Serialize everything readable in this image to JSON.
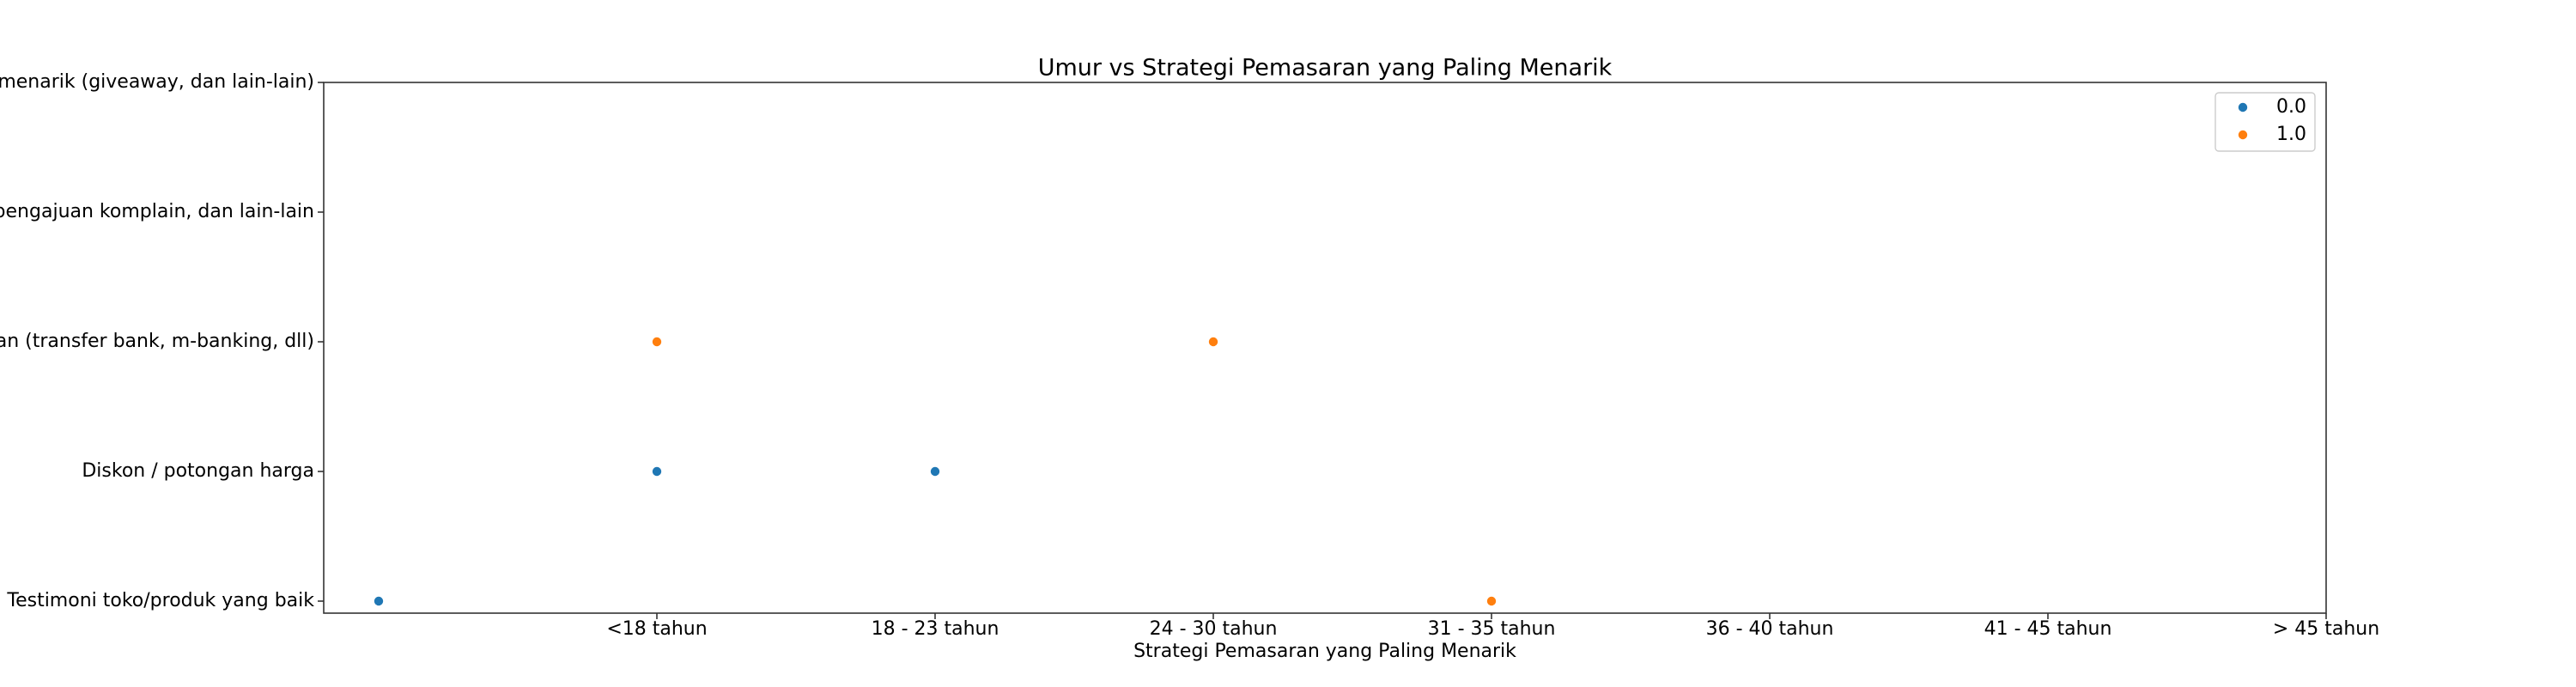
{
  "chart_data": {
    "type": "scatter",
    "title": "Umur vs Strategi Pemasaran yang Paling Menarik",
    "xlabel": "Strategi Pemasaran yang Paling Menarik",
    "ylabel": "",
    "x_categories": [
      "",
      "<18 tahun",
      "18 - 23 tahun",
      "24 - 30 tahun",
      "31 - 35 tahun",
      "36 - 40 tahun",
      "41 - 45 tahun",
      "> 45 tahun"
    ],
    "x_tick_labels": [
      "<18 tahun",
      "18 - 23 tahun",
      "24 - 30 tahun",
      "31 - 35 tahun",
      "36 - 40 tahun",
      "41 - 45 tahun",
      "> 45 tahun"
    ],
    "y_categories": [
      "Testimoni toko/produk yang baik",
      "Diskon / potongan harga",
      "Kemudahan dalam pembayaran (transfer bank, m-banking, dll)",
      "Pelayanan yang responsif, pengajuan komplain, dan lain-lain",
      "Promosi yang menarik (giveaway, dan lain-lain)"
    ],
    "grid": false,
    "legend": {
      "position": "top-right",
      "entries": [
        {
          "label": "0.0",
          "color": "#1f77b4"
        },
        {
          "label": "1.0",
          "color": "#ff7f0e"
        }
      ]
    },
    "series": [
      {
        "name": "0.0",
        "color": "#1f77b4",
        "points": [
          {
            "x": "",
            "y": "Testimoni toko/produk yang baik"
          },
          {
            "x": "<18 tahun",
            "y": "Diskon / potongan harga"
          },
          {
            "x": "18 - 23 tahun",
            "y": "Diskon / potongan harga"
          }
        ]
      },
      {
        "name": "1.0",
        "color": "#ff7f0e",
        "points": [
          {
            "x": "<18 tahun",
            "y": "Kemudahan dalam pembayaran (transfer bank, m-banking, dll)"
          },
          {
            "x": "24 - 30 tahun",
            "y": "Kemudahan dalam pembayaran (transfer bank, m-banking, dll)"
          },
          {
            "x": "31 - 35 tahun",
            "y": "Testimoni toko/produk yang baik"
          }
        ]
      }
    ]
  }
}
